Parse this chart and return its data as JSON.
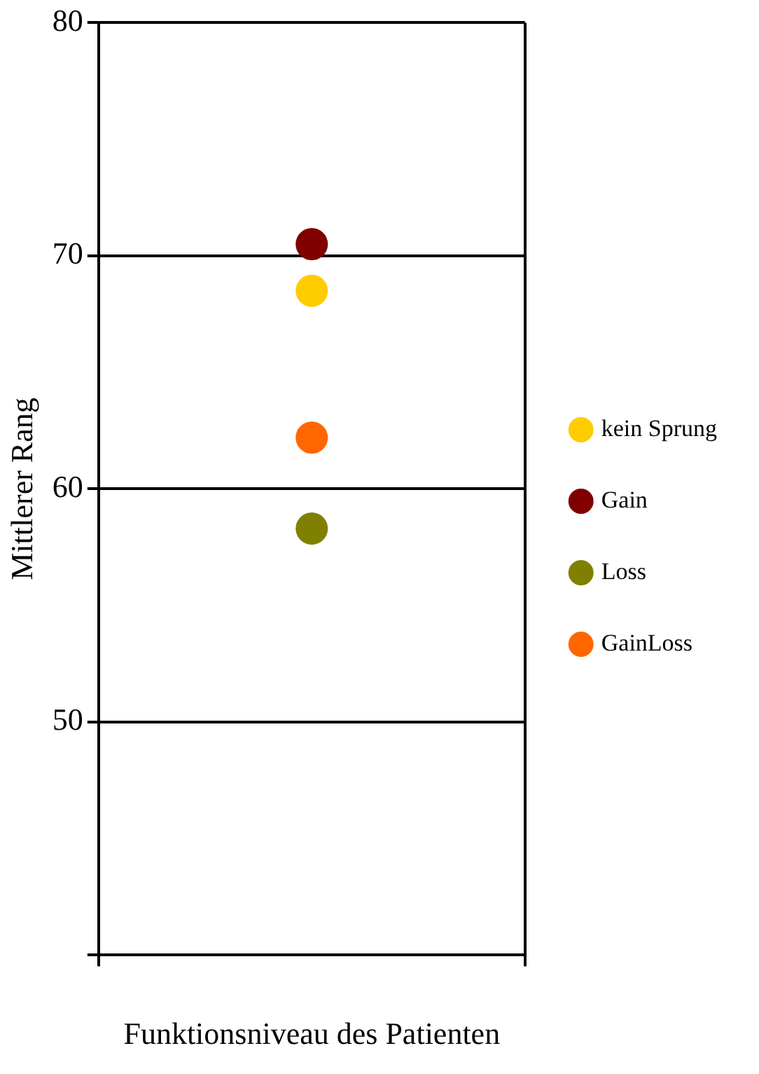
{
  "chart_data": {
    "type": "scatter",
    "xlabel": "Funktionsniveau des Patienten",
    "ylabel": "Mittlerer Rang",
    "categories": [
      null
    ],
    "series": [
      {
        "name": "kein Sprung",
        "color": "#ffcc00",
        "values": [
          68.5
        ]
      },
      {
        "name": "Gain",
        "color": "#800000",
        "values": [
          70.5
        ]
      },
      {
        "name": "Loss",
        "color": "#808000",
        "values": [
          58.3
        ]
      },
      {
        "name": "GainLoss",
        "color": "#ff6600",
        "values": [
          62.2
        ]
      }
    ],
    "ylim": [
      40,
      80
    ],
    "yticks": [
      {
        "value": 40,
        "label": null
      },
      50,
      60,
      70,
      80
    ],
    "grid": "y",
    "legend": "right",
    "marker": "circle"
  }
}
